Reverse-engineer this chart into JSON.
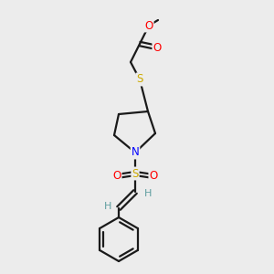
{
  "bg_color": "#ececec",
  "atom_colors": {
    "O": "#ff0000",
    "N": "#0000ff",
    "S_thio": "#ccaa00",
    "S_sulfonyl": "#ccaa00",
    "H": "#5f9ea0",
    "C": "#000000"
  },
  "bond_color": "#1a1a1a",
  "lw": 1.6,
  "figsize": [
    3.0,
    3.0
  ],
  "dpi": 100
}
